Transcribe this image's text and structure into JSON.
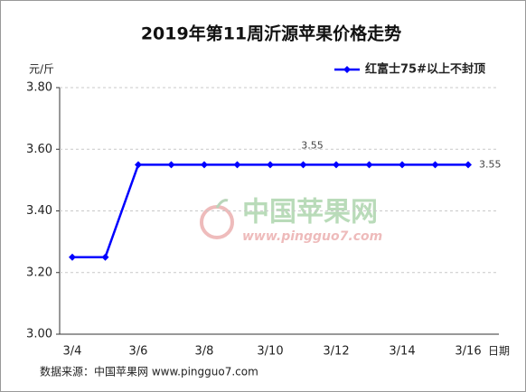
{
  "chart_data": {
    "type": "line",
    "title": "2019年第11周沂源苹果价格走势",
    "y_label": "元/斤",
    "x_label": "日期",
    "source": "数据来源：中国苹果网 www.pingguo7.com",
    "watermark": {
      "title": "中国苹果网",
      "url": "www.pingguo7.com"
    },
    "categories": [
      "3/4",
      null,
      "3/6",
      null,
      "3/8",
      null,
      "3/10",
      null,
      "3/12",
      null,
      "3/14",
      null,
      "3/16"
    ],
    "series": [
      {
        "name": "红富士75#以上不封顶",
        "color": "#0000ff",
        "values": [
          3.25,
          3.25,
          3.55,
          3.55,
          3.55,
          3.55,
          3.55,
          3.55,
          3.55,
          3.55,
          3.55,
          3.55,
          3.55
        ],
        "labeled_points": [
          7,
          12
        ]
      }
    ],
    "ylim": [
      3,
      3.8
    ],
    "yticks": [
      {
        "value": 3,
        "label": "3.00"
      },
      {
        "value": 3.2,
        "label": "3.20"
      },
      {
        "value": 3.4,
        "label": "3.40"
      },
      {
        "value": 3.6,
        "label": "3.60"
      },
      {
        "value": 3.8,
        "label": "3.80"
      }
    ],
    "grid": true,
    "legend": "upper right"
  }
}
